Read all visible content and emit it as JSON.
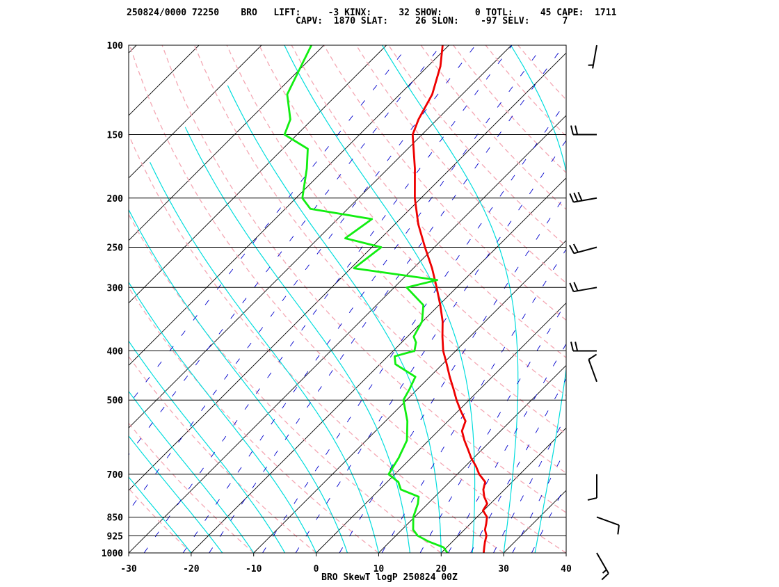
{
  "header": {
    "line1": "250824/0000 72250    BRO   LIFT:     -3 KINX:     32 SHOW:      0 TOTL:     45 CAPE:  1711",
    "line2": "CAPV:  1870 SLAT:     26 SLON:    -97 SELV:      7"
  },
  "chart_data": {
    "type": "line",
    "title": "BRO SkewT logP 250824 00Z",
    "xlabel": "",
    "ylabel": "",
    "x_ticks": [
      -30,
      -20,
      -10,
      0,
      10,
      20,
      30,
      40
    ],
    "y_ticks": [
      100,
      150,
      200,
      250,
      300,
      400,
      500,
      700,
      850,
      925,
      1000
    ],
    "xlim": [
      -30,
      40
    ],
    "ylim": [
      1000,
      100
    ],
    "y_scale": "log",
    "x_axis": "temperature (skewed)",
    "colors": {
      "temperature": "#ee0000",
      "dewpoint": "#11ee11",
      "isotherms": "#000000",
      "dry_adiabats": "#f4a7b3",
      "moist_adiabats": "#00dddd",
      "mixing_ratio": "#0000cc",
      "isobars": "#000000"
    },
    "series": [
      {
        "role": "temperature",
        "points": [
          [
            1000,
            26.8
          ],
          [
            975,
            26.0
          ],
          [
            950,
            25.2
          ],
          [
            925,
            24.5
          ],
          [
            900,
            23.3
          ],
          [
            875,
            22.5
          ],
          [
            850,
            21.6
          ],
          [
            825,
            19.9
          ],
          [
            800,
            19.5
          ],
          [
            775,
            17.9
          ],
          [
            750,
            16.6
          ],
          [
            725,
            15.7
          ],
          [
            700,
            13.5
          ],
          [
            675,
            11.7
          ],
          [
            650,
            9.6
          ],
          [
            625,
            7.7
          ],
          [
            600,
            5.7
          ],
          [
            575,
            3.8
          ],
          [
            550,
            2.8
          ],
          [
            525,
            0.4
          ],
          [
            500,
            -2.0
          ],
          [
            475,
            -4.3
          ],
          [
            450,
            -6.8
          ],
          [
            425,
            -9.3
          ],
          [
            400,
            -12.0
          ],
          [
            375,
            -14.4
          ],
          [
            350,
            -16.8
          ],
          [
            325,
            -19.8
          ],
          [
            300,
            -23.2
          ],
          [
            275,
            -27.0
          ],
          [
            250,
            -31.5
          ],
          [
            225,
            -36.3
          ],
          [
            200,
            -41.0
          ],
          [
            175,
            -45.7
          ],
          [
            150,
            -51.5
          ],
          [
            140,
            -53.0
          ],
          [
            125,
            -54.8
          ],
          [
            110,
            -58.0
          ],
          [
            100,
            -61.0
          ]
        ]
      },
      {
        "role": "dewpoint",
        "points": [
          [
            1000,
            21.0
          ],
          [
            975,
            19.5
          ],
          [
            950,
            16.2
          ],
          [
            925,
            13.5
          ],
          [
            900,
            11.8
          ],
          [
            850,
            9.8
          ],
          [
            800,
            8.4
          ],
          [
            775,
            7.4
          ],
          [
            750,
            3.4
          ],
          [
            725,
            1.8
          ],
          [
            700,
            -1.0
          ],
          [
            650,
            -2.0
          ],
          [
            600,
            -3.5
          ],
          [
            550,
            -6.5
          ],
          [
            500,
            -10.5
          ],
          [
            475,
            -11.3
          ],
          [
            450,
            -12.3
          ],
          [
            425,
            -17.5
          ],
          [
            410,
            -18.9
          ],
          [
            400,
            -16.6
          ],
          [
            385,
            -17.7
          ],
          [
            375,
            -19.0
          ],
          [
            350,
            -20.1
          ],
          [
            325,
            -22.5
          ],
          [
            300,
            -28.0
          ],
          [
            290,
            -24.3
          ],
          [
            275,
            -39.5
          ],
          [
            250,
            -38.5
          ],
          [
            240,
            -45.7
          ],
          [
            220,
            -44.5
          ],
          [
            210,
            -56.0
          ],
          [
            200,
            -59.0
          ],
          [
            175,
            -63.0
          ],
          [
            160,
            -66.0
          ],
          [
            150,
            -72.0
          ],
          [
            140,
            -73.5
          ],
          [
            125,
            -78.0
          ],
          [
            100,
            -82.0
          ]
        ]
      }
    ],
    "wind_barbs": [
      {
        "p": 100,
        "dir": 190,
        "spd": 5
      },
      {
        "p": 150,
        "dir": 270,
        "spd": 20
      },
      {
        "p": 200,
        "dir": 260,
        "spd": 30
      },
      {
        "p": 250,
        "dir": 255,
        "spd": 20
      },
      {
        "p": 300,
        "dir": 260,
        "spd": 20
      },
      {
        "p": 400,
        "dir": 270,
        "spd": 20
      },
      {
        "p": 460,
        "dir": 340,
        "spd": 10
      },
      {
        "p": 700,
        "dir": 180,
        "spd": 10
      },
      {
        "p": 850,
        "dir": 110,
        "spd": 10
      },
      {
        "p": 1000,
        "dir": 150,
        "spd": 15
      }
    ]
  }
}
